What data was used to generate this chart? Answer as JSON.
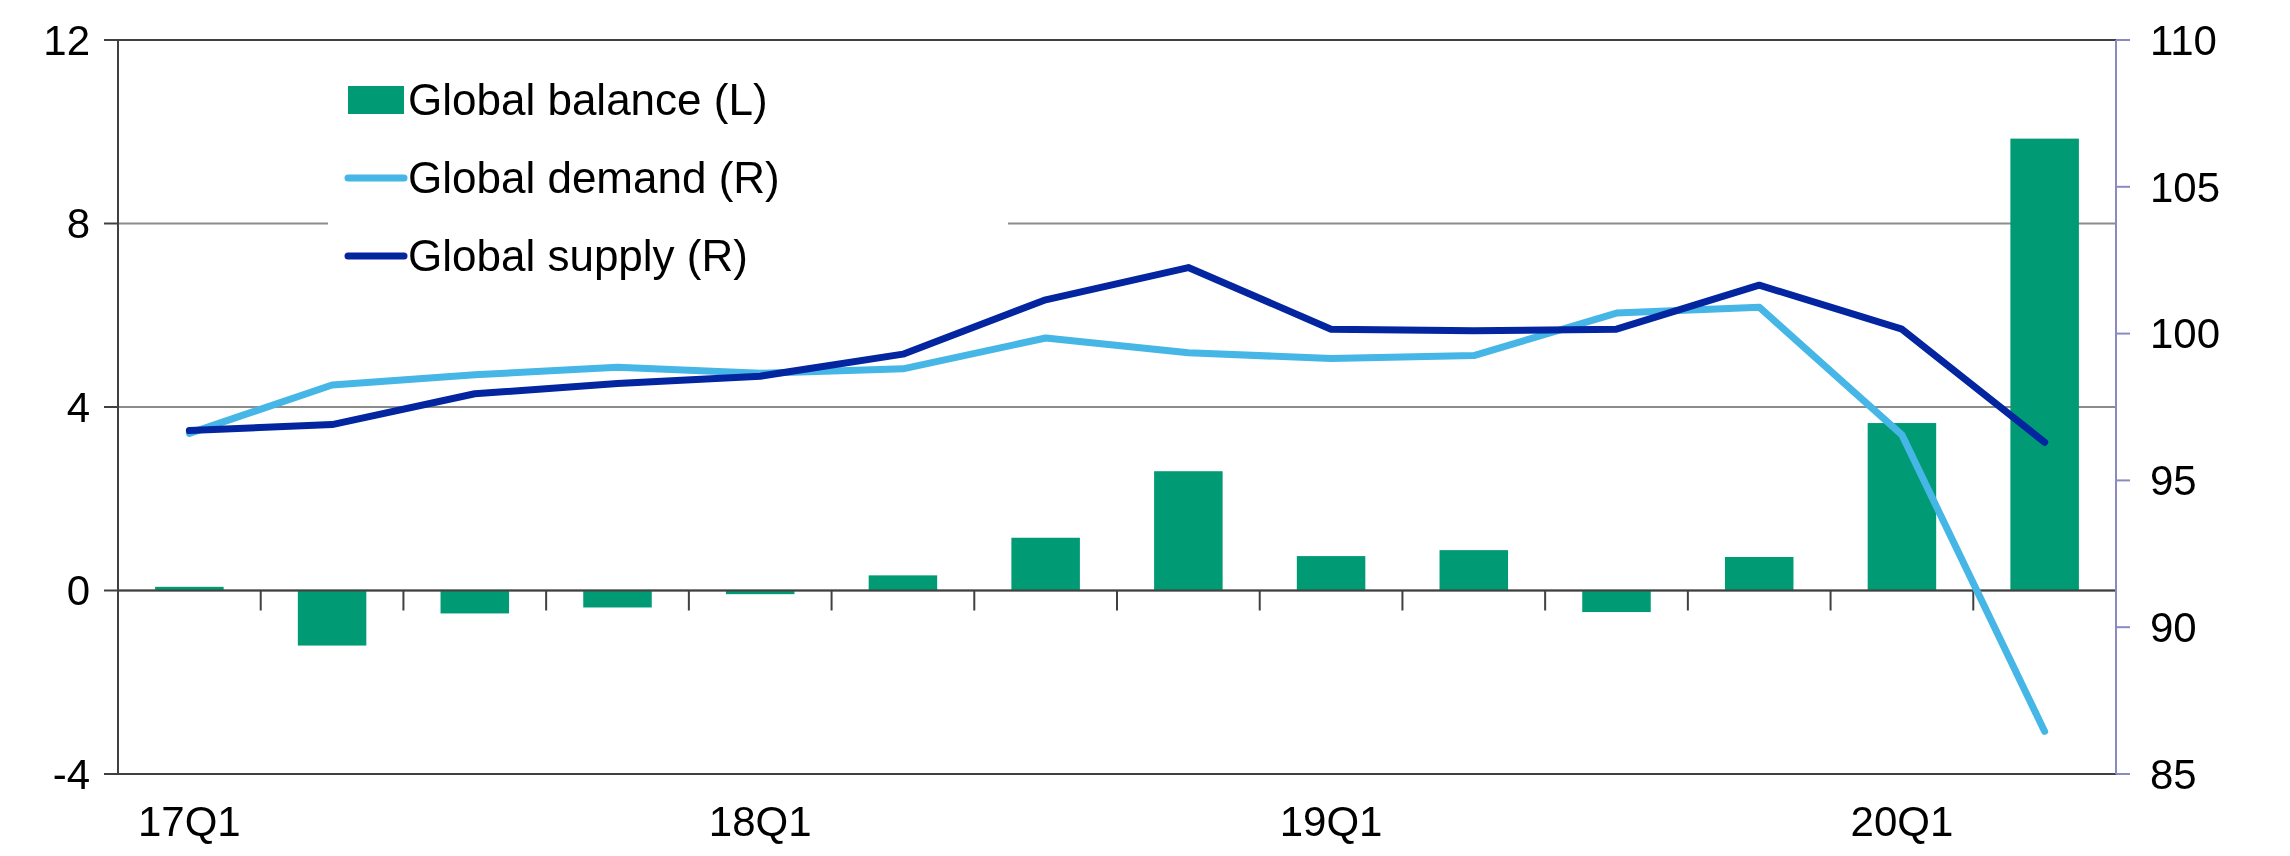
{
  "chart_data": {
    "type": "bar",
    "categories": [
      "17Q1",
      null,
      null,
      null,
      "18Q1",
      null,
      null,
      null,
      "19Q1",
      null,
      null,
      null,
      "20Q1",
      null
    ],
    "series": [
      {
        "name": "Global balance (L)",
        "color": "#009a74",
        "values": [
          0.08,
          -1.2,
          -0.5,
          -0.37,
          -0.08,
          0.33,
          1.15,
          2.6,
          0.75,
          0.88,
          -0.47,
          0.73,
          3.65,
          9.85
        ]
      },
      {
        "name": "Global demand (R)",
        "type": "line",
        "axis": "y2",
        "color": "#45b6e6",
        "values": [
          96.6,
          98.25,
          98.6,
          98.85,
          98.65,
          98.8,
          99.85,
          99.35,
          99.15,
          99.25,
          100.7,
          100.9,
          96.55,
          86.45
        ]
      },
      {
        "name": "Global supply (R)",
        "type": "line",
        "axis": "y2",
        "color": "#0325a0",
        "values": [
          96.7,
          96.9,
          97.95,
          98.3,
          98.55,
          99.3,
          101.15,
          102.25,
          100.15,
          100.1,
          100.15,
          101.65,
          100.15,
          96.3
        ]
      }
    ],
    "ylim": [
      -4,
      12
    ],
    "yticks": [
      -4,
      0,
      4,
      8,
      12
    ],
    "y2lim": [
      85,
      110
    ],
    "y2ticks": [
      85,
      90,
      95,
      100,
      105,
      110
    ],
    "grid": "y",
    "legend": "top left"
  }
}
